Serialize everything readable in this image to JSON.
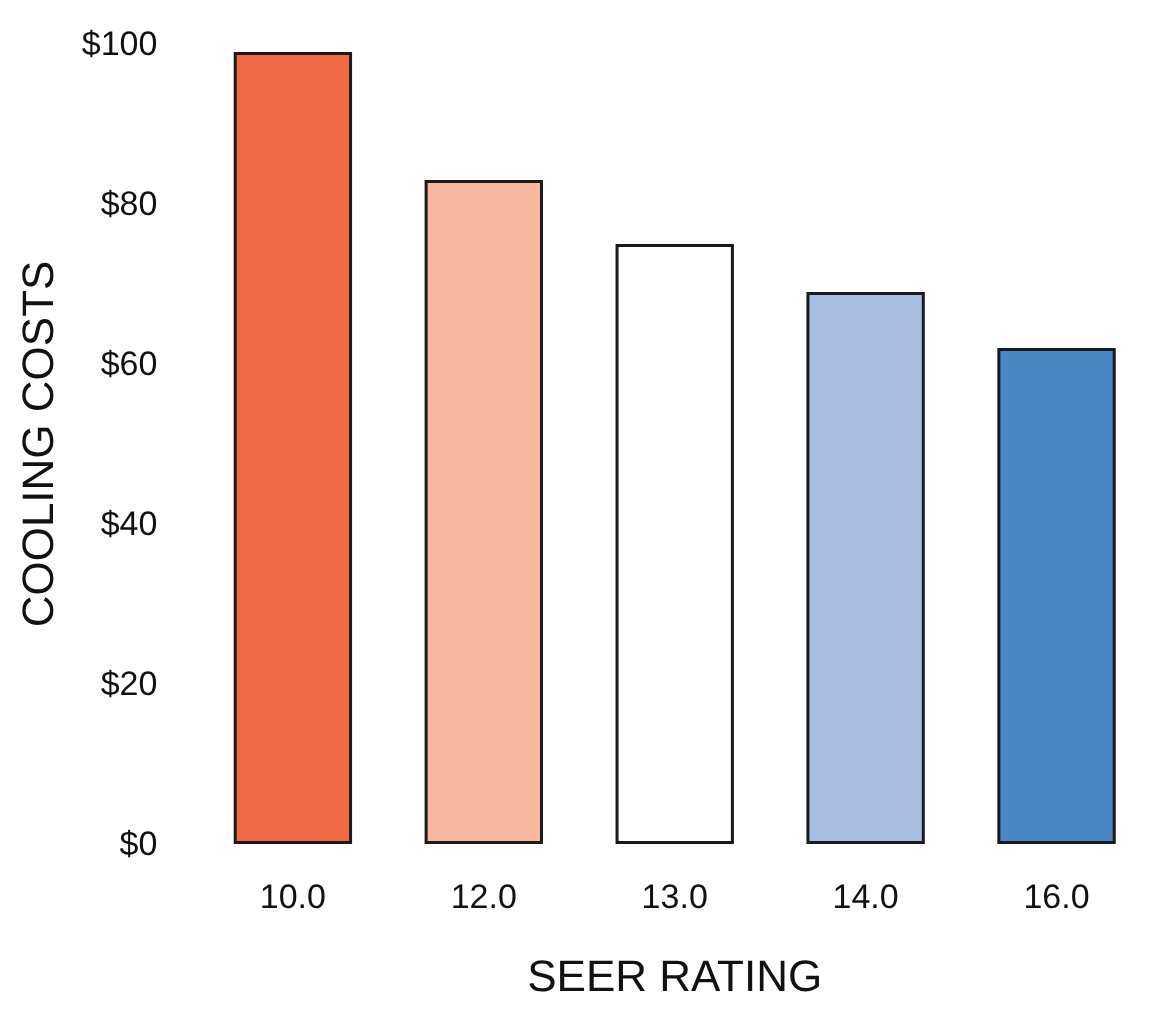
{
  "chart_data": {
    "type": "bar",
    "xlabel": "SEER RATING",
    "ylabel": "COOLING COSTS",
    "categories": [
      "10.0",
      "12.0",
      "13.0",
      "14.0",
      "16.0"
    ],
    "values": [
      99,
      83,
      75,
      69,
      62
    ],
    "colors": [
      "#f26a45",
      "#f7b89e",
      "#ffffff",
      "#a9bde0",
      "#4a86c5"
    ],
    "ylim": [
      0,
      100
    ],
    "yticks": [
      {
        "value": 0,
        "label": "$0"
      },
      {
        "value": 20,
        "label": "$20"
      },
      {
        "value": 40,
        "label": "$40"
      },
      {
        "value": 60,
        "label": "$60"
      },
      {
        "value": 80,
        "label": "$80"
      },
      {
        "value": 100,
        "label": "$100"
      }
    ]
  }
}
